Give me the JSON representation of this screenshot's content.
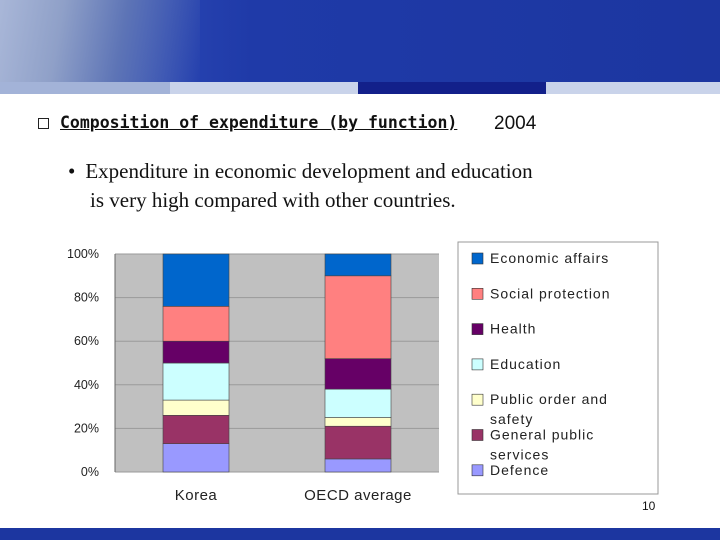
{
  "slide": {
    "heading": "Composition of expenditure (by function)",
    "year": "2004",
    "bullet_line1": "Expenditure in economic development and education",
    "bullet_line2": "is very  high compared with other countries.",
    "page_number": "10"
  },
  "colors": {
    "banner": "#1c36a0",
    "stripe_dark": "#12208a",
    "stripe_light": "#9fb2dc",
    "plot_bg": "#c0c0c0"
  },
  "chart_data": {
    "type": "bar",
    "stacked": true,
    "categories": [
      "Korea",
      "OECD average"
    ],
    "ylim": [
      0,
      100
    ],
    "ytick_labels": [
      "0%",
      "20%",
      "40%",
      "60%",
      "80%",
      "100%"
    ],
    "legend_position": "right",
    "series": [
      {
        "name": "Defence",
        "color": "#9999ff",
        "values": [
          13,
          6
        ]
      },
      {
        "name": "General public services",
        "color": "#993366",
        "values": [
          13,
          15
        ]
      },
      {
        "name": "Public order and safety",
        "color": "#ffffcc",
        "values": [
          7,
          4
        ]
      },
      {
        "name": "Education",
        "color": "#ccffff",
        "values": [
          17,
          13
        ]
      },
      {
        "name": "Health",
        "color": "#660066",
        "values": [
          10,
          14
        ]
      },
      {
        "name": "Social protection",
        "color": "#ff8080",
        "values": [
          16,
          38
        ]
      },
      {
        "name": "Economic affairs",
        "color": "#0066cc",
        "values": [
          24,
          10
        ]
      }
    ]
  }
}
